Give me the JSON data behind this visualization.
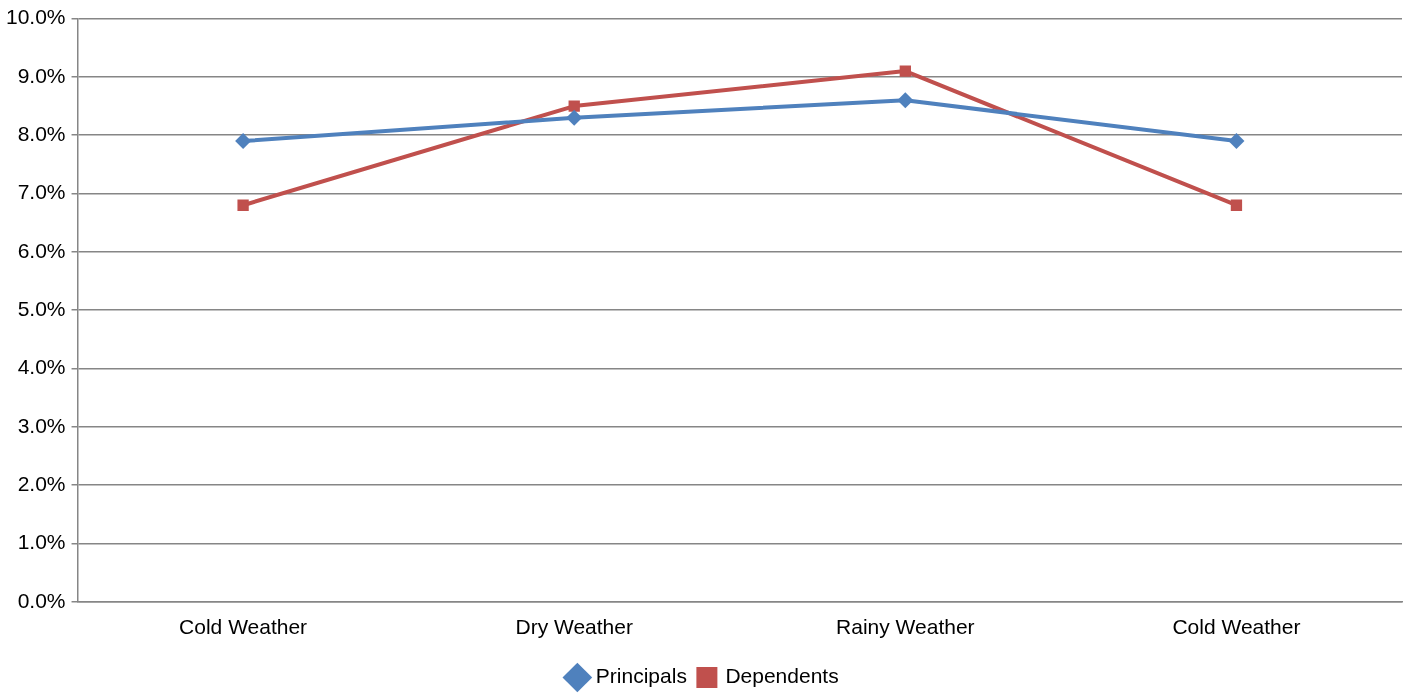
{
  "chart_data": {
    "type": "line",
    "categories": [
      "Cold Weather",
      "Dry Weather",
      "Rainy Weather",
      "Cold Weather"
    ],
    "series": [
      {
        "name": "Principals",
        "color": "#4f81bd",
        "marker": "diamond",
        "values": [
          7.9,
          8.3,
          8.6,
          7.9
        ]
      },
      {
        "name": "Dependents",
        "color": "#c0504d",
        "marker": "square",
        "values": [
          6.8,
          8.5,
          9.1,
          6.8
        ]
      }
    ],
    "ylim": [
      0,
      10
    ],
    "yticks": [
      {
        "value": 0,
        "label": "0.0%"
      },
      {
        "value": 1,
        "label": "1.0%"
      },
      {
        "value": 2,
        "label": "2.0%"
      },
      {
        "value": 3,
        "label": "3.0%"
      },
      {
        "value": 4,
        "label": "4.0%"
      },
      {
        "value": 5,
        "label": "5.0%"
      },
      {
        "value": 6,
        "label": "6.0%"
      },
      {
        "value": 7,
        "label": "7.0%"
      },
      {
        "value": 8,
        "label": "8.0%"
      },
      {
        "value": 9,
        "label": "9.0%"
      },
      {
        "value": 10,
        "label": "10.0%"
      }
    ],
    "grid": "y",
    "legend": "bottom",
    "line_style": "solid"
  }
}
